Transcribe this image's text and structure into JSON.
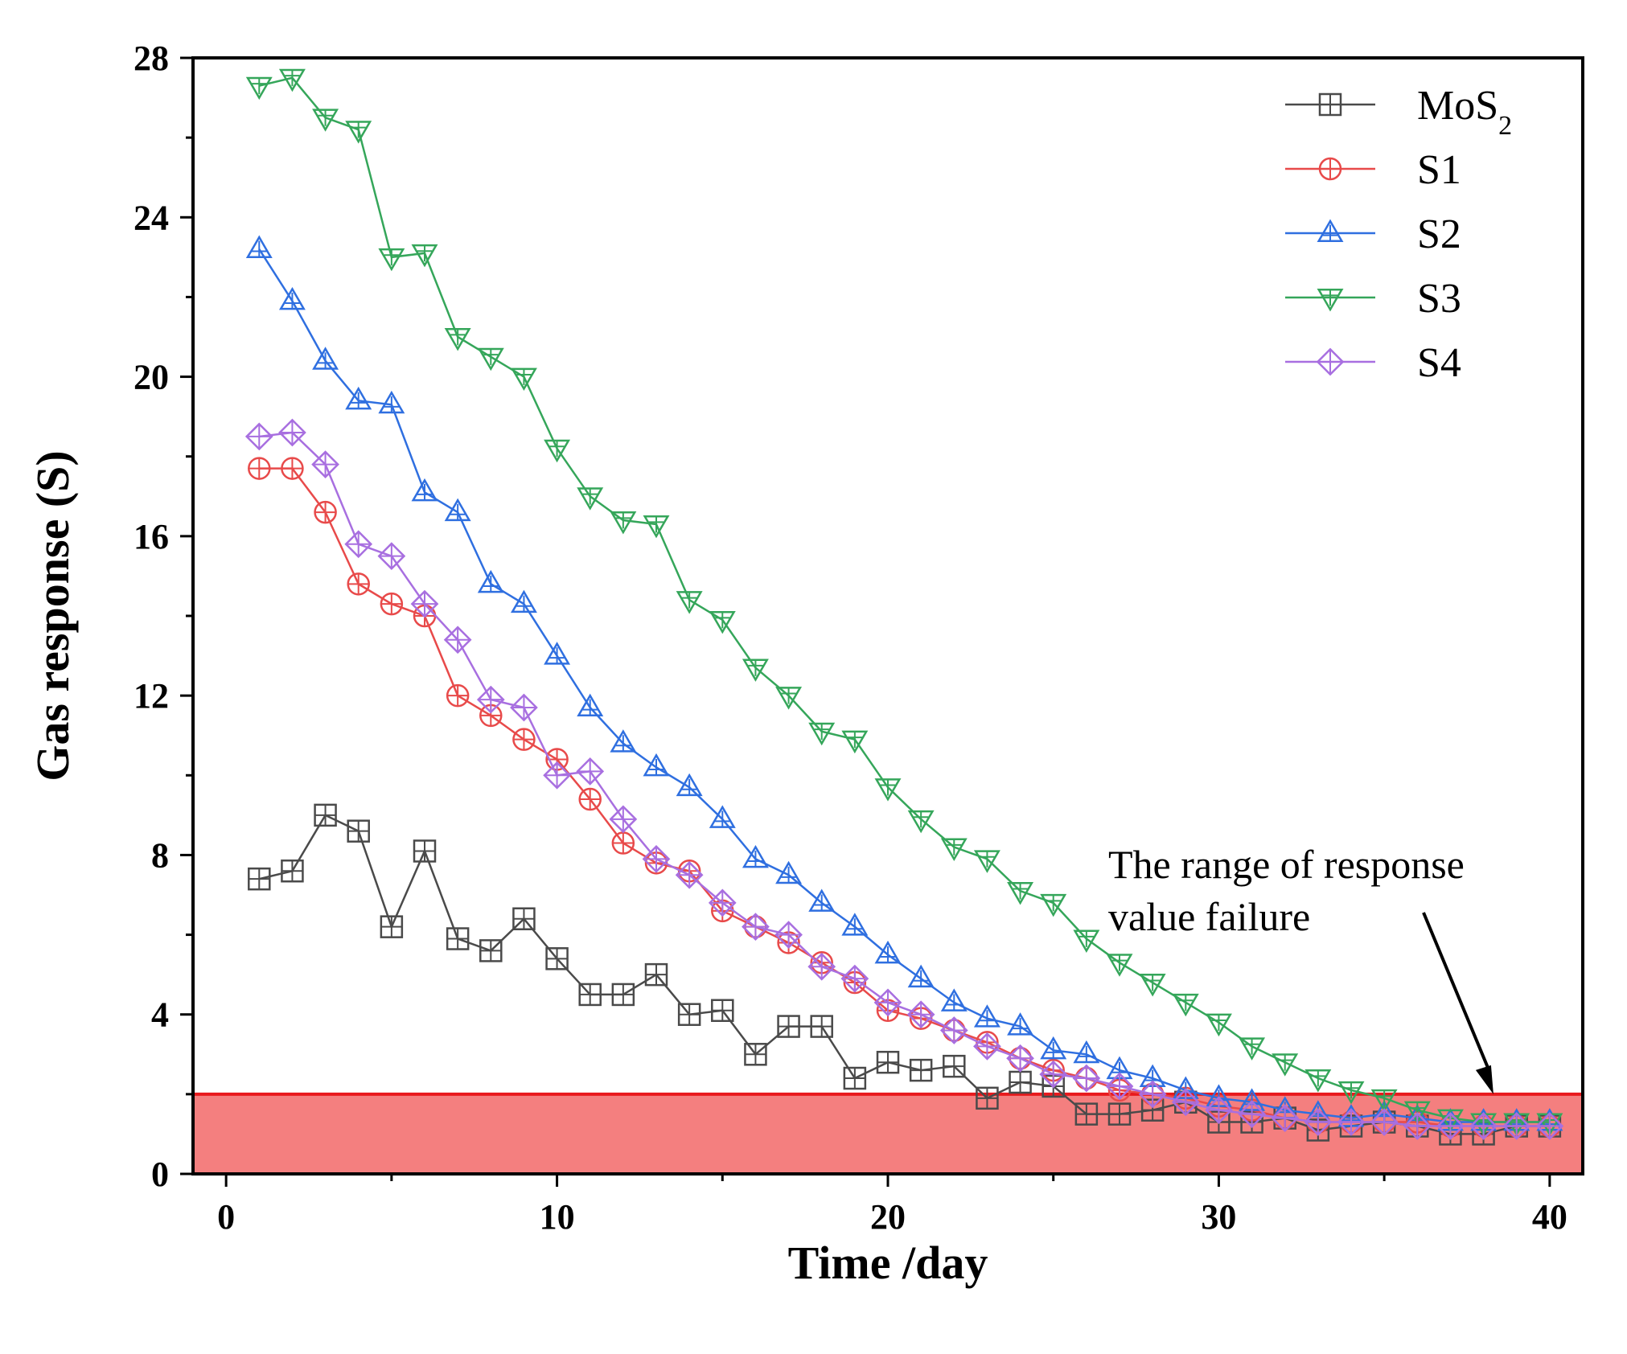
{
  "chart_data": {
    "type": "line",
    "title": "",
    "xlabel": "Time /day",
    "ylabel": "Gas response (S)",
    "xlim": [
      -1,
      41
    ],
    "ylim": [
      0,
      28
    ],
    "xticks": [
      0,
      10,
      20,
      30,
      40
    ],
    "yticks": [
      0,
      4,
      8,
      12,
      16,
      20,
      24,
      28
    ],
    "xtick_labels": [
      "0",
      "10",
      "20",
      "30",
      "40"
    ],
    "ytick_labels": [
      "0",
      "4",
      "8",
      "12",
      "16",
      "20",
      "24",
      "28"
    ],
    "legend_position": "top-right",
    "threshold": {
      "value": 2.0,
      "line_color": "#e8191c",
      "fill_color": "#f47f7f"
    },
    "annotation": {
      "lines": [
        "The range of response",
        "value failure"
      ],
      "target": [
        38.3,
        2.0
      ]
    },
    "x": [
      1,
      2,
      3,
      4,
      5,
      6,
      7,
      8,
      9,
      10,
      11,
      12,
      13,
      14,
      15,
      16,
      17,
      18,
      19,
      20,
      21,
      22,
      23,
      24,
      25,
      26,
      27,
      28,
      29,
      30,
      31,
      32,
      33,
      34,
      35,
      36,
      37,
      38,
      39,
      40
    ],
    "series": [
      {
        "name": "MoS",
        "subscript": "2",
        "color": "#4a4a4a",
        "marker": "square",
        "values": [
          7.4,
          7.6,
          9.0,
          8.6,
          6.2,
          8.1,
          5.9,
          5.6,
          6.4,
          5.4,
          4.5,
          4.5,
          5.0,
          4.0,
          4.1,
          3.0,
          3.7,
          3.7,
          2.4,
          2.8,
          2.6,
          2.7,
          1.9,
          2.3,
          2.2,
          1.5,
          1.5,
          1.6,
          1.8,
          1.3,
          1.3,
          1.4,
          1.1,
          1.2,
          1.3,
          1.2,
          1.0,
          1.0,
          1.2,
          1.2
        ]
      },
      {
        "name": "S1",
        "subscript": "",
        "color": "#e84a4a",
        "marker": "circle",
        "values": [
          17.7,
          17.7,
          16.6,
          14.8,
          14.3,
          14.0,
          12.0,
          11.5,
          10.9,
          10.4,
          9.4,
          8.3,
          7.8,
          7.6,
          6.6,
          6.2,
          5.8,
          5.3,
          4.8,
          4.1,
          3.9,
          3.6,
          3.3,
          2.9,
          2.6,
          2.4,
          2.1,
          2.0,
          1.9,
          1.7,
          1.6,
          1.4,
          1.3,
          1.3,
          1.3,
          1.3,
          1.2,
          1.2,
          1.2,
          1.2
        ]
      },
      {
        "name": "S2",
        "subscript": "",
        "color": "#2f6fe0",
        "marker": "triangle-up",
        "values": [
          23.2,
          21.9,
          20.4,
          19.4,
          19.3,
          17.1,
          16.6,
          14.8,
          14.3,
          13.0,
          11.7,
          10.8,
          10.2,
          9.7,
          8.9,
          7.9,
          7.5,
          6.8,
          6.2,
          5.5,
          4.9,
          4.3,
          3.9,
          3.7,
          3.1,
          3.0,
          2.6,
          2.4,
          2.1,
          1.9,
          1.8,
          1.6,
          1.5,
          1.4,
          1.5,
          1.4,
          1.3,
          1.3,
          1.3,
          1.3
        ]
      },
      {
        "name": "S3",
        "subscript": "",
        "color": "#35a65a",
        "marker": "triangle-down",
        "values": [
          27.3,
          27.5,
          26.5,
          26.2,
          23.0,
          23.1,
          21.0,
          20.5,
          20.0,
          18.2,
          17.0,
          16.4,
          16.3,
          14.4,
          13.9,
          12.7,
          12.0,
          11.1,
          10.9,
          9.7,
          8.9,
          8.2,
          7.9,
          7.1,
          6.8,
          5.9,
          5.3,
          4.8,
          4.3,
          3.8,
          3.2,
          2.8,
          2.4,
          2.1,
          1.9,
          1.6,
          1.4,
          1.3,
          1.3,
          1.3
        ]
      },
      {
        "name": "S4",
        "subscript": "",
        "color": "#a86fe0",
        "marker": "diamond",
        "values": [
          18.5,
          18.6,
          17.8,
          15.8,
          15.5,
          14.3,
          13.4,
          11.9,
          11.7,
          10.0,
          10.1,
          8.9,
          7.9,
          7.5,
          6.8,
          6.2,
          6.0,
          5.2,
          4.9,
          4.3,
          4.0,
          3.6,
          3.2,
          2.9,
          2.5,
          2.4,
          2.2,
          2.0,
          1.8,
          1.6,
          1.5,
          1.4,
          1.3,
          1.3,
          1.3,
          1.2,
          1.2,
          1.2,
          1.2,
          1.2
        ]
      }
    ]
  }
}
